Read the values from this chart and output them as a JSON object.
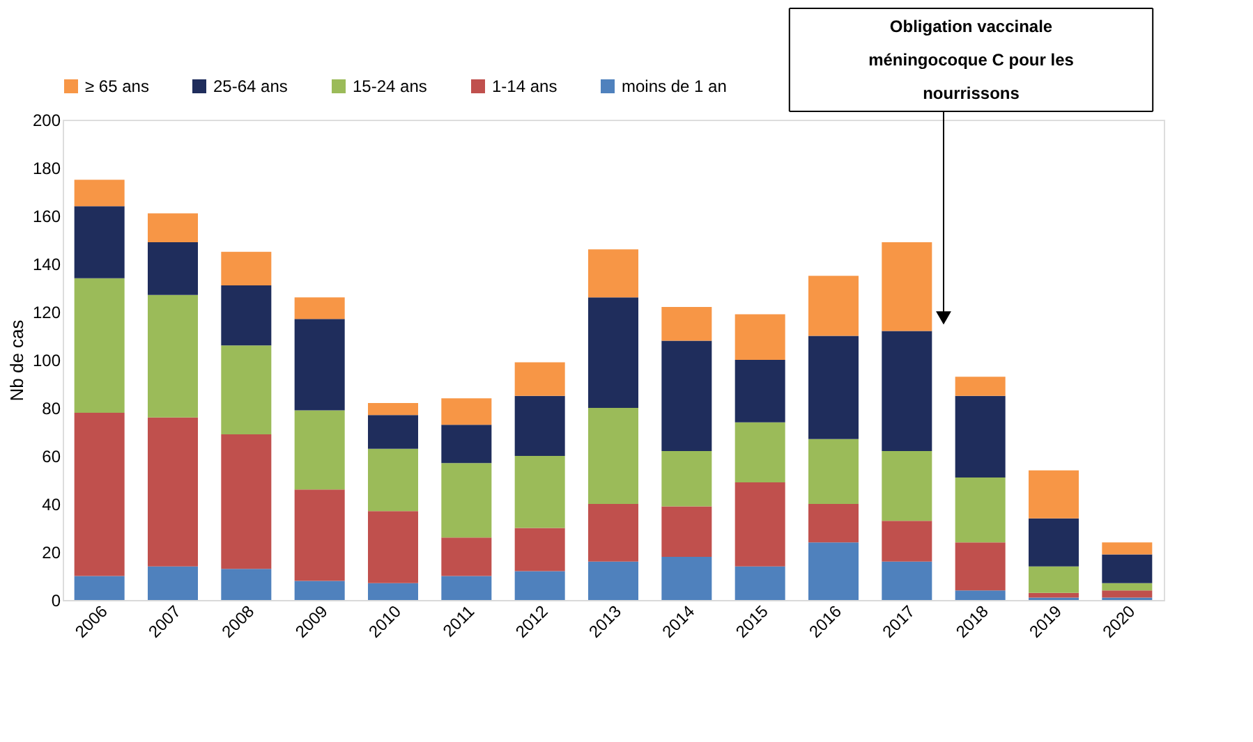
{
  "chart_data": {
    "type": "bar",
    "stacked": true,
    "ylabel": "Nb de cas",
    "categories": [
      "2006",
      "2007",
      "2008",
      "2009",
      "2010",
      "2011",
      "2012",
      "2013",
      "2014",
      "2015",
      "2016",
      "2017",
      "2018",
      "2019",
      "2020"
    ],
    "series": [
      {
        "name": "moins de 1 an",
        "color": "#4f81bd",
        "values": [
          10,
          14,
          13,
          8,
          7,
          10,
          12,
          16,
          18,
          14,
          24,
          16,
          4,
          1,
          1
        ]
      },
      {
        "name": "1-14 ans",
        "color": "#c0504d",
        "values": [
          68,
          62,
          56,
          38,
          30,
          16,
          18,
          24,
          21,
          35,
          16,
          17,
          20,
          2,
          3
        ]
      },
      {
        "name": "15-24 ans",
        "color": "#9bbb59",
        "values": [
          56,
          51,
          37,
          33,
          26,
          31,
          30,
          40,
          23,
          25,
          27,
          29,
          27,
          11,
          3
        ]
      },
      {
        "name": "25-64 ans",
        "color": "#1f2d5c",
        "values": [
          30,
          22,
          25,
          38,
          14,
          16,
          25,
          46,
          46,
          26,
          43,
          50,
          34,
          20,
          12
        ]
      },
      {
        "name": "≥ 65 ans",
        "color": "#f79646",
        "values": [
          11,
          12,
          14,
          9,
          5,
          11,
          14,
          20,
          14,
          19,
          25,
          37,
          8,
          20,
          5
        ]
      }
    ],
    "ylim": [
      0,
      200
    ],
    "yticks": [
      0,
      20,
      40,
      60,
      80,
      100,
      120,
      140,
      160,
      180,
      200
    ],
    "grid": false,
    "legend": "top",
    "annotations": [
      "Obligation vaccinale méningocoque C pour les nourrissons"
    ]
  }
}
